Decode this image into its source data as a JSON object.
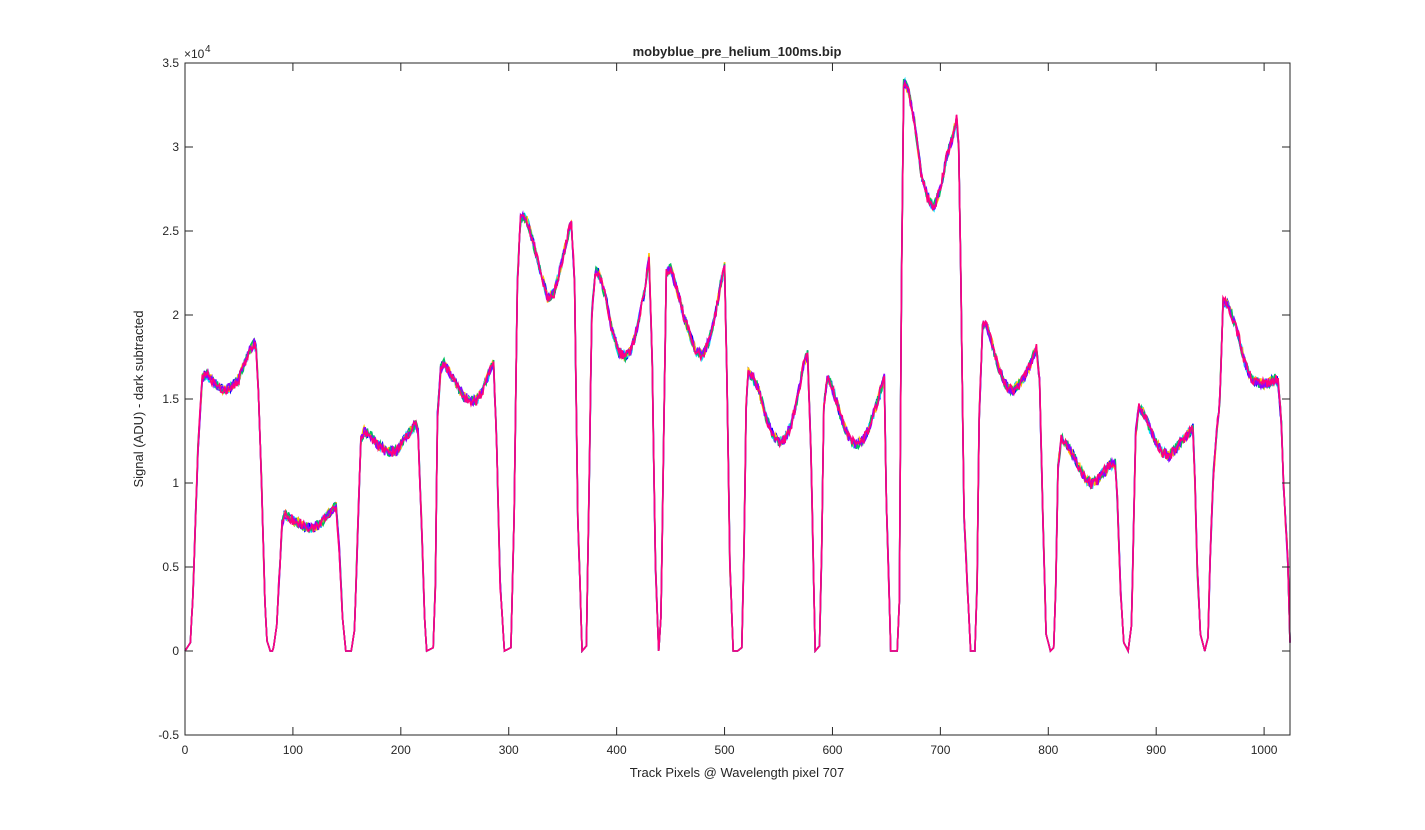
{
  "chart_data": {
    "type": "line",
    "title": "mobyblue_pre_helium_100ms.bip",
    "xlabel": "Track Pixels @ Wavelength pixel 707",
    "ylabel": "Signal (ADU) - dark subtracted",
    "xlim": [
      0,
      1024
    ],
    "ylim": [
      -5000,
      35000
    ],
    "xticks": [
      0,
      100,
      200,
      300,
      400,
      500,
      600,
      700,
      800,
      900,
      1000
    ],
    "yticks": [
      -5000,
      0,
      5000,
      10000,
      15000,
      20000,
      25000,
      30000,
      35000
    ],
    "ytick_labels": [
      "-0.5",
      "0",
      "0.5",
      "1",
      "1.5",
      "2",
      "2.5",
      "3",
      "3.5"
    ],
    "y_exponent_label": "×10",
    "y_exponent_power": "4",
    "grid": false,
    "legend": "none",
    "series_colors": [
      "#0000ff",
      "#00e0ff",
      "#ffc000",
      "#00c060",
      "#9000ff",
      "#ff0080"
    ],
    "segments": [
      {
        "x": [
          0,
          5,
          8,
          12,
          16,
          20,
          26,
          32,
          38,
          44,
          50,
          56,
          60,
          64,
          66,
          68,
          71,
          74,
          76,
          79,
          82
        ],
        "y": [
          0,
          500,
          4500,
          12000,
          16300,
          16500,
          16000,
          15700,
          15500,
          15800,
          16200,
          17200,
          17900,
          18300,
          18000,
          15500,
          10000,
          3000,
          600,
          0,
          0
        ]
      },
      {
        "x": [
          82,
          85,
          87,
          90,
          92,
          95,
          100,
          106,
          112,
          118,
          124,
          130,
          136,
          140,
          143,
          146,
          149
        ],
        "y": [
          200,
          1500,
          4000,
          7600,
          8100,
          8000,
          7800,
          7600,
          7400,
          7300,
          7500,
          7900,
          8400,
          8600,
          6000,
          2000,
          0
        ]
      },
      {
        "x": [
          149,
          154,
          157,
          160,
          163,
          166,
          172,
          180,
          188,
          196,
          204,
          210,
          214,
          216,
          219,
          222,
          224
        ],
        "y": [
          0,
          0,
          1200,
          7000,
          12500,
          13100,
          12800,
          12200,
          11800,
          11900,
          12700,
          13200,
          13600,
          13000,
          8000,
          2000,
          0
        ]
      },
      {
        "x": [
          224,
          230,
          232,
          234,
          237,
          240,
          246,
          252,
          258,
          264,
          270,
          276,
          282,
          286,
          289,
          292,
          296
        ],
        "y": [
          0,
          200,
          4000,
          14000,
          16800,
          17100,
          16500,
          15800,
          15200,
          14900,
          14900,
          15500,
          16600,
          17100,
          12000,
          4000,
          0
        ]
      },
      {
        "x": [
          296,
          302,
          305,
          308,
          311,
          314,
          318,
          324,
          330,
          336,
          342,
          348,
          354,
          358,
          361,
          364,
          368
        ],
        "y": [
          0,
          200,
          8000,
          22000,
          25700,
          25900,
          25400,
          24000,
          22500,
          21000,
          21300,
          22800,
          24500,
          25700,
          22000,
          8000,
          0
        ]
      },
      {
        "x": [
          368,
          372,
          374,
          377,
          380,
          384,
          390,
          396,
          402,
          408,
          414,
          420,
          426,
          430,
          433,
          436,
          439
        ],
        "y": [
          0,
          300,
          8000,
          20000,
          22600,
          22400,
          21000,
          19000,
          17800,
          17500,
          18000,
          19500,
          21500,
          23500,
          17000,
          5000,
          0
        ]
      },
      {
        "x": [
          439,
          441,
          443,
          446,
          450,
          456,
          462,
          468,
          474,
          480,
          486,
          492,
          497,
          500,
          502,
          505,
          508
        ],
        "y": [
          0,
          2000,
          10000,
          22500,
          22800,
          21500,
          20000,
          18800,
          17800,
          17600,
          18500,
          20200,
          22000,
          22900,
          17000,
          5000,
          0
        ]
      },
      {
        "x": [
          508,
          512,
          516,
          518,
          520,
          522,
          526,
          532,
          538,
          544,
          550,
          556,
          562,
          568,
          574,
          577,
          580,
          584
        ],
        "y": [
          0,
          0,
          200,
          6000,
          14500,
          16600,
          16300,
          15500,
          14000,
          13000,
          12400,
          12600,
          13500,
          15200,
          17300,
          17700,
          12000,
          0
        ]
      },
      {
        "x": [
          584,
          588,
          590,
          592,
          595,
          598,
          604,
          610,
          616,
          622,
          628,
          634,
          640,
          646,
          648,
          650,
          654
        ],
        "y": [
          0,
          300,
          6000,
          14500,
          16200,
          16000,
          14800,
          13500,
          12600,
          12300,
          12500,
          13300,
          14500,
          15800,
          16300,
          9000,
          0
        ]
      },
      {
        "x": [
          654,
          660,
          662,
          664,
          666,
          670,
          676,
          682,
          688,
          694,
          700,
          706,
          712,
          715,
          717,
          719,
          722,
          728
        ],
        "y": [
          0,
          0,
          3000,
          22000,
          33800,
          33500,
          31500,
          28500,
          27000,
          26400,
          27500,
          29500,
          30700,
          31800,
          30000,
          22000,
          8000,
          0
        ]
      },
      {
        "x": [
          728,
          732,
          734,
          736,
          739,
          742,
          748,
          754,
          760,
          766,
          772,
          778,
          784,
          789,
          792,
          795,
          798,
          802
        ],
        "y": [
          0,
          0,
          4000,
          14000,
          19300,
          19500,
          18300,
          16800,
          15900,
          15500,
          15800,
          16300,
          17200,
          18000,
          16000,
          8000,
          1000,
          0
        ]
      },
      {
        "x": [
          802,
          805,
          807,
          809,
          812,
          816,
          822,
          828,
          834,
          840,
          846,
          852,
          858,
          862,
          864,
          867,
          870,
          874
        ],
        "y": [
          0,
          200,
          4000,
          11000,
          12600,
          12400,
          11800,
          11000,
          10300,
          9900,
          10200,
          10700,
          11100,
          11200,
          9000,
          3500,
          500,
          0
        ]
      },
      {
        "x": [
          874,
          877,
          879,
          881,
          884,
          888,
          894,
          900,
          906,
          912,
          918,
          924,
          930,
          934,
          936,
          938,
          941,
          945
        ],
        "y": [
          0,
          1500,
          7000,
          13000,
          14500,
          14200,
          13300,
          12400,
          11800,
          11600,
          12000,
          12500,
          13000,
          13300,
          10000,
          5000,
          1000,
          0
        ]
      },
      {
        "x": [
          945,
          948,
          950,
          953,
          956,
          959,
          962,
          966,
          970,
          976,
          982,
          988,
          994,
          1000,
          1006,
          1010,
          1013,
          1016,
          1018,
          1020,
          1022,
          1024
        ],
        "y": [
          0,
          800,
          5500,
          10500,
          13000,
          15000,
          20800,
          20700,
          20000,
          18800,
          17200,
          16200,
          16000,
          15900,
          16000,
          16200,
          16000,
          13500,
          10000,
          7500,
          5500,
          500
        ]
      }
    ]
  }
}
